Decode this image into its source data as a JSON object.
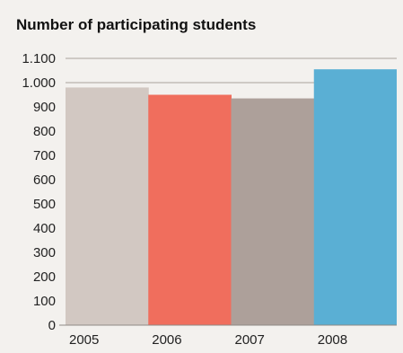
{
  "chart_data": {
    "type": "bar",
    "title": "Number of participating students",
    "xlabel": "",
    "ylabel": "",
    "categories": [
      "2005",
      "2006",
      "2007",
      "2008"
    ],
    "values": [
      980,
      950,
      935,
      1055
    ],
    "colors": [
      "#d2c8c2",
      "#f06e5d",
      "#ada09a",
      "#5aafd4"
    ],
    "ylim": [
      0,
      1100
    ],
    "yticks": [
      0,
      100,
      200,
      300,
      400,
      500,
      600,
      700,
      800,
      900,
      1000,
      1100
    ],
    "ytick_labels": [
      "0",
      "100",
      "200",
      "300",
      "400",
      "500",
      "600",
      "700",
      "800",
      "900",
      "1.000",
      "1.100"
    ],
    "grid": "horizontal",
    "legend": "none"
  }
}
